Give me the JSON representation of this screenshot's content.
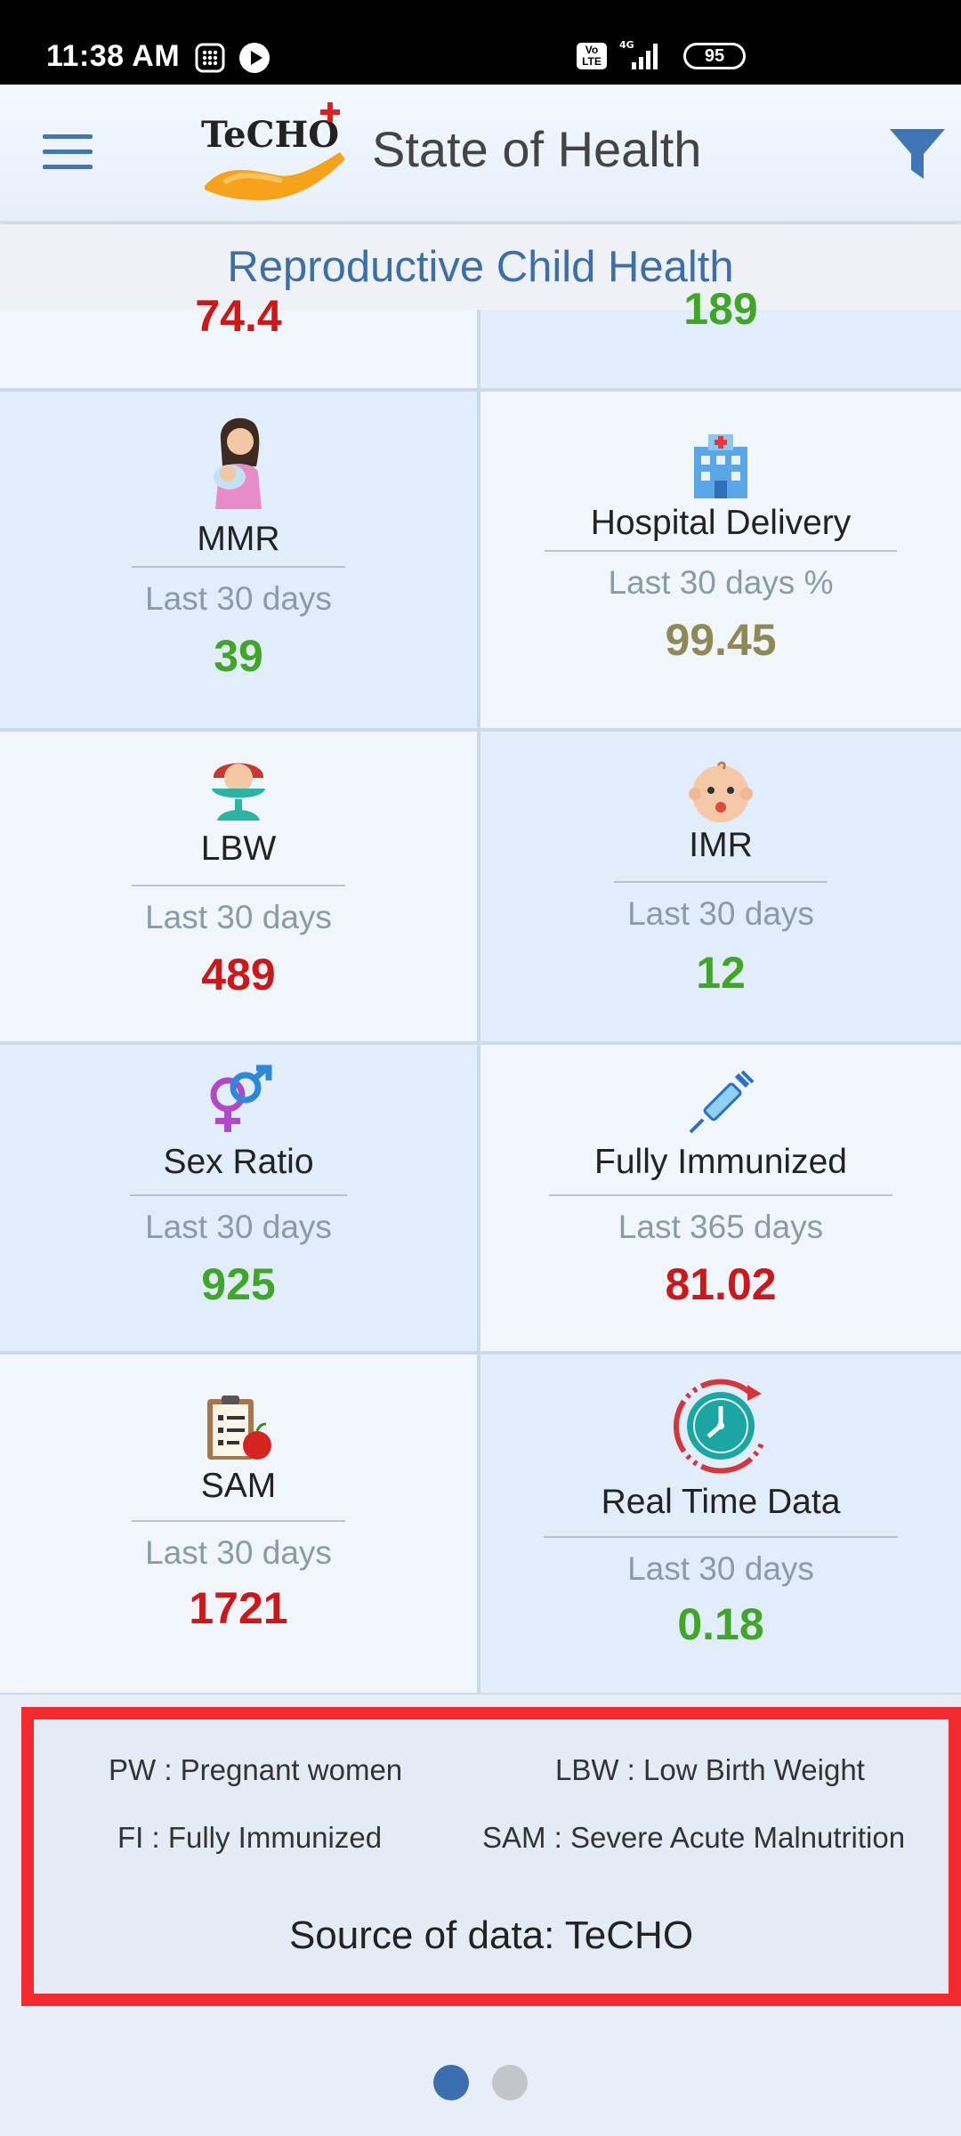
{
  "status_bar": {
    "time": "11:38 AM",
    "volte": "Vo LTE",
    "network": "4G",
    "battery": "95"
  },
  "app_bar": {
    "logo_text": "TeCHO",
    "title": "State of Health"
  },
  "section": {
    "title": "Reproductive Child Health"
  },
  "partial_row": {
    "left_value": "74.4",
    "right_value": "189"
  },
  "metrics": [
    {
      "name": "MMR",
      "period": "Last 30 days",
      "value": "39",
      "icon": "mother-baby-icon",
      "value_color": "#3fa628"
    },
    {
      "name": "Hospital Delivery",
      "period": "Last 30 days %",
      "value": "99.45",
      "icon": "hospital-icon",
      "value_color": "#8f8a55"
    },
    {
      "name": "LBW",
      "period": "Last 30 days",
      "value": "489",
      "icon": "baby-scale-icon",
      "value_color": "#cc1818"
    },
    {
      "name": "IMR",
      "period": "Last 30 days",
      "value": "12",
      "icon": "baby-face-icon",
      "value_color": "#3fa628"
    },
    {
      "name": "Sex Ratio",
      "period": "Last 30 days",
      "value": "925",
      "icon": "gender-icon",
      "value_color": "#3fa628"
    },
    {
      "name": "Fully Immunized",
      "period": "Last 365 days",
      "value": "81.02",
      "icon": "syringe-icon",
      "value_color": "#cc1818"
    },
    {
      "name": "SAM",
      "period": "Last 30 days",
      "value": "1721",
      "icon": "clipboard-apple-icon",
      "value_color": "#cc1818"
    },
    {
      "name": "Real Time Data",
      "period": "Last 30 days",
      "value": "0.18",
      "icon": "clock-icon",
      "value_color": "#3fa628"
    }
  ],
  "legend": {
    "items": [
      "PW : Pregnant women",
      "LBW : Low Birth Weight",
      "FI : Fully Immunized",
      "SAM : Severe Acute Malnutrition"
    ],
    "source": "Source of data: TeCHO"
  },
  "pager": {
    "pages": 2,
    "active": 1,
    "active_color": "#3a6eae",
    "inactive_color": "#c2c6cb"
  },
  "colors": {
    "accent": "#3f76b5",
    "green": "#3fa628",
    "red": "#cc1818",
    "olive": "#8f8a55"
  }
}
